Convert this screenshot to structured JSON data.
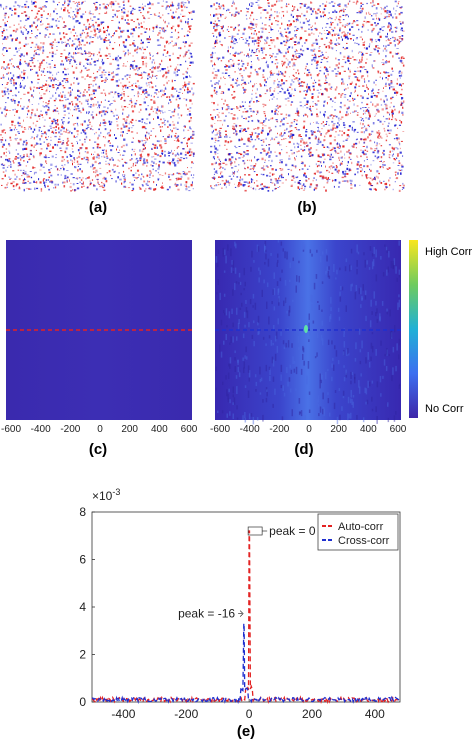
{
  "panels": {
    "a": {
      "label": "(a)"
    },
    "b": {
      "label": "(b)"
    },
    "c": {
      "label": "(c)",
      "ticks": [
        "-600",
        "-400",
        "-200",
        "0",
        "200",
        "400",
        "600"
      ]
    },
    "d": {
      "label": "(d)",
      "ticks": [
        "-600",
        "-400",
        "-200",
        "0",
        "200",
        "400",
        "600"
      ]
    },
    "e": {
      "label": "(e)"
    }
  },
  "colorbar": {
    "top_label": "High Corr",
    "bottom_label": "No Corr"
  },
  "colors": {
    "heatmap_low": "#3b2bb0",
    "heatmap_mid": "#3a57d8",
    "peak_highlight": "#5fe3a8",
    "auto_corr": "#e32222",
    "cross_corr": "#1f2fcf",
    "noise_red": "#e11d1d",
    "noise_blue": "#1a1ad0"
  },
  "chart_data": {
    "type": "line",
    "ylabel": "",
    "xlabel": "",
    "y_exponent": "×10",
    "y_exponent_power": "-3",
    "xlim": [
      -500,
      480
    ],
    "ylim": [
      0,
      8
    ],
    "xticks": [
      -400,
      -200,
      0,
      200,
      400
    ],
    "yticks": [
      0,
      2,
      4,
      6,
      8
    ],
    "legend_position": "top-right",
    "series": [
      {
        "name": "Auto-corr",
        "style": "dashed",
        "peak_x": 0,
        "peak_y": 7.2,
        "baseline": 0.1
      },
      {
        "name": "Cross-corr",
        "style": "dashed",
        "peak_x": -16,
        "peak_y": 3.3,
        "baseline": 0.1
      }
    ],
    "annotations": [
      {
        "text": "peak = 0",
        "x": 0,
        "y": 7.2
      },
      {
        "text": "peak = -16",
        "x": -16,
        "y": 3.3
      }
    ]
  }
}
